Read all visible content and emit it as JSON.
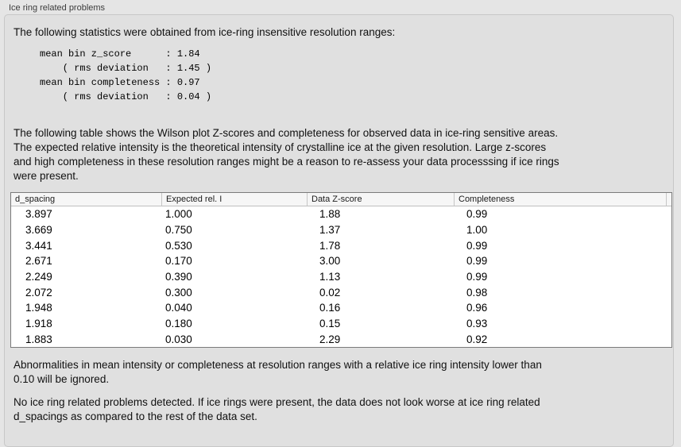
{
  "header": {
    "title": "Ice ring related problems"
  },
  "panel": {
    "intro": "The following statistics were obtained from ice-ring insensitive resolution ranges:",
    "stats_block": "mean bin z_score      : 1.84\n    ( rms deviation   : 1.45 )\nmean bin completeness : 0.97\n    ( rms deviation   : 0.04 )",
    "stats": {
      "mean_bin_z_score": "1.84",
      "mean_bin_z_score_rms_deviation": "1.45",
      "mean_bin_completeness": "0.97",
      "mean_bin_completeness_rms_deviation": "0.04"
    },
    "description_lines": [
      "The following table shows the Wilson plot Z-scores and completeness for observed data in ice-ring sensitive areas.",
      "The expected relative intensity is the theoretical intensity of crystalline ice at the given resolution. Large z-scores",
      "and high completeness in these resolution ranges might be a reason to re-assess your data processsing if ice rings",
      "were present."
    ],
    "table": {
      "columns": [
        "d_spacing",
        "Expected rel. I",
        "Data Z-score",
        "Completeness"
      ],
      "rows": [
        [
          "3.897",
          "1.000",
          "1.88",
          "0.99"
        ],
        [
          "3.669",
          "0.750",
          "1.37",
          "1.00"
        ],
        [
          "3.441",
          "0.530",
          "1.78",
          "0.99"
        ],
        [
          "2.671",
          "0.170",
          "3.00",
          "0.99"
        ],
        [
          "2.249",
          "0.390",
          "1.13",
          "0.99"
        ],
        [
          "2.072",
          "0.300",
          "0.02",
          "0.98"
        ],
        [
          "1.948",
          "0.040",
          "0.16",
          "0.96"
        ],
        [
          "1.918",
          "0.180",
          "0.15",
          "0.93"
        ],
        [
          "1.883",
          "0.030",
          "2.29",
          "0.92"
        ]
      ]
    },
    "note_lines": [
      "Abnormalities in mean intensity or completeness at resolution ranges with a relative ice ring intensity lower than",
      "0.10 will be ignored."
    ],
    "conclusion_lines": [
      "No ice ring related problems detected. If ice rings were present, the data does not look worse at ice ring related",
      "d_spacings as compared to the rest of the data set."
    ]
  }
}
